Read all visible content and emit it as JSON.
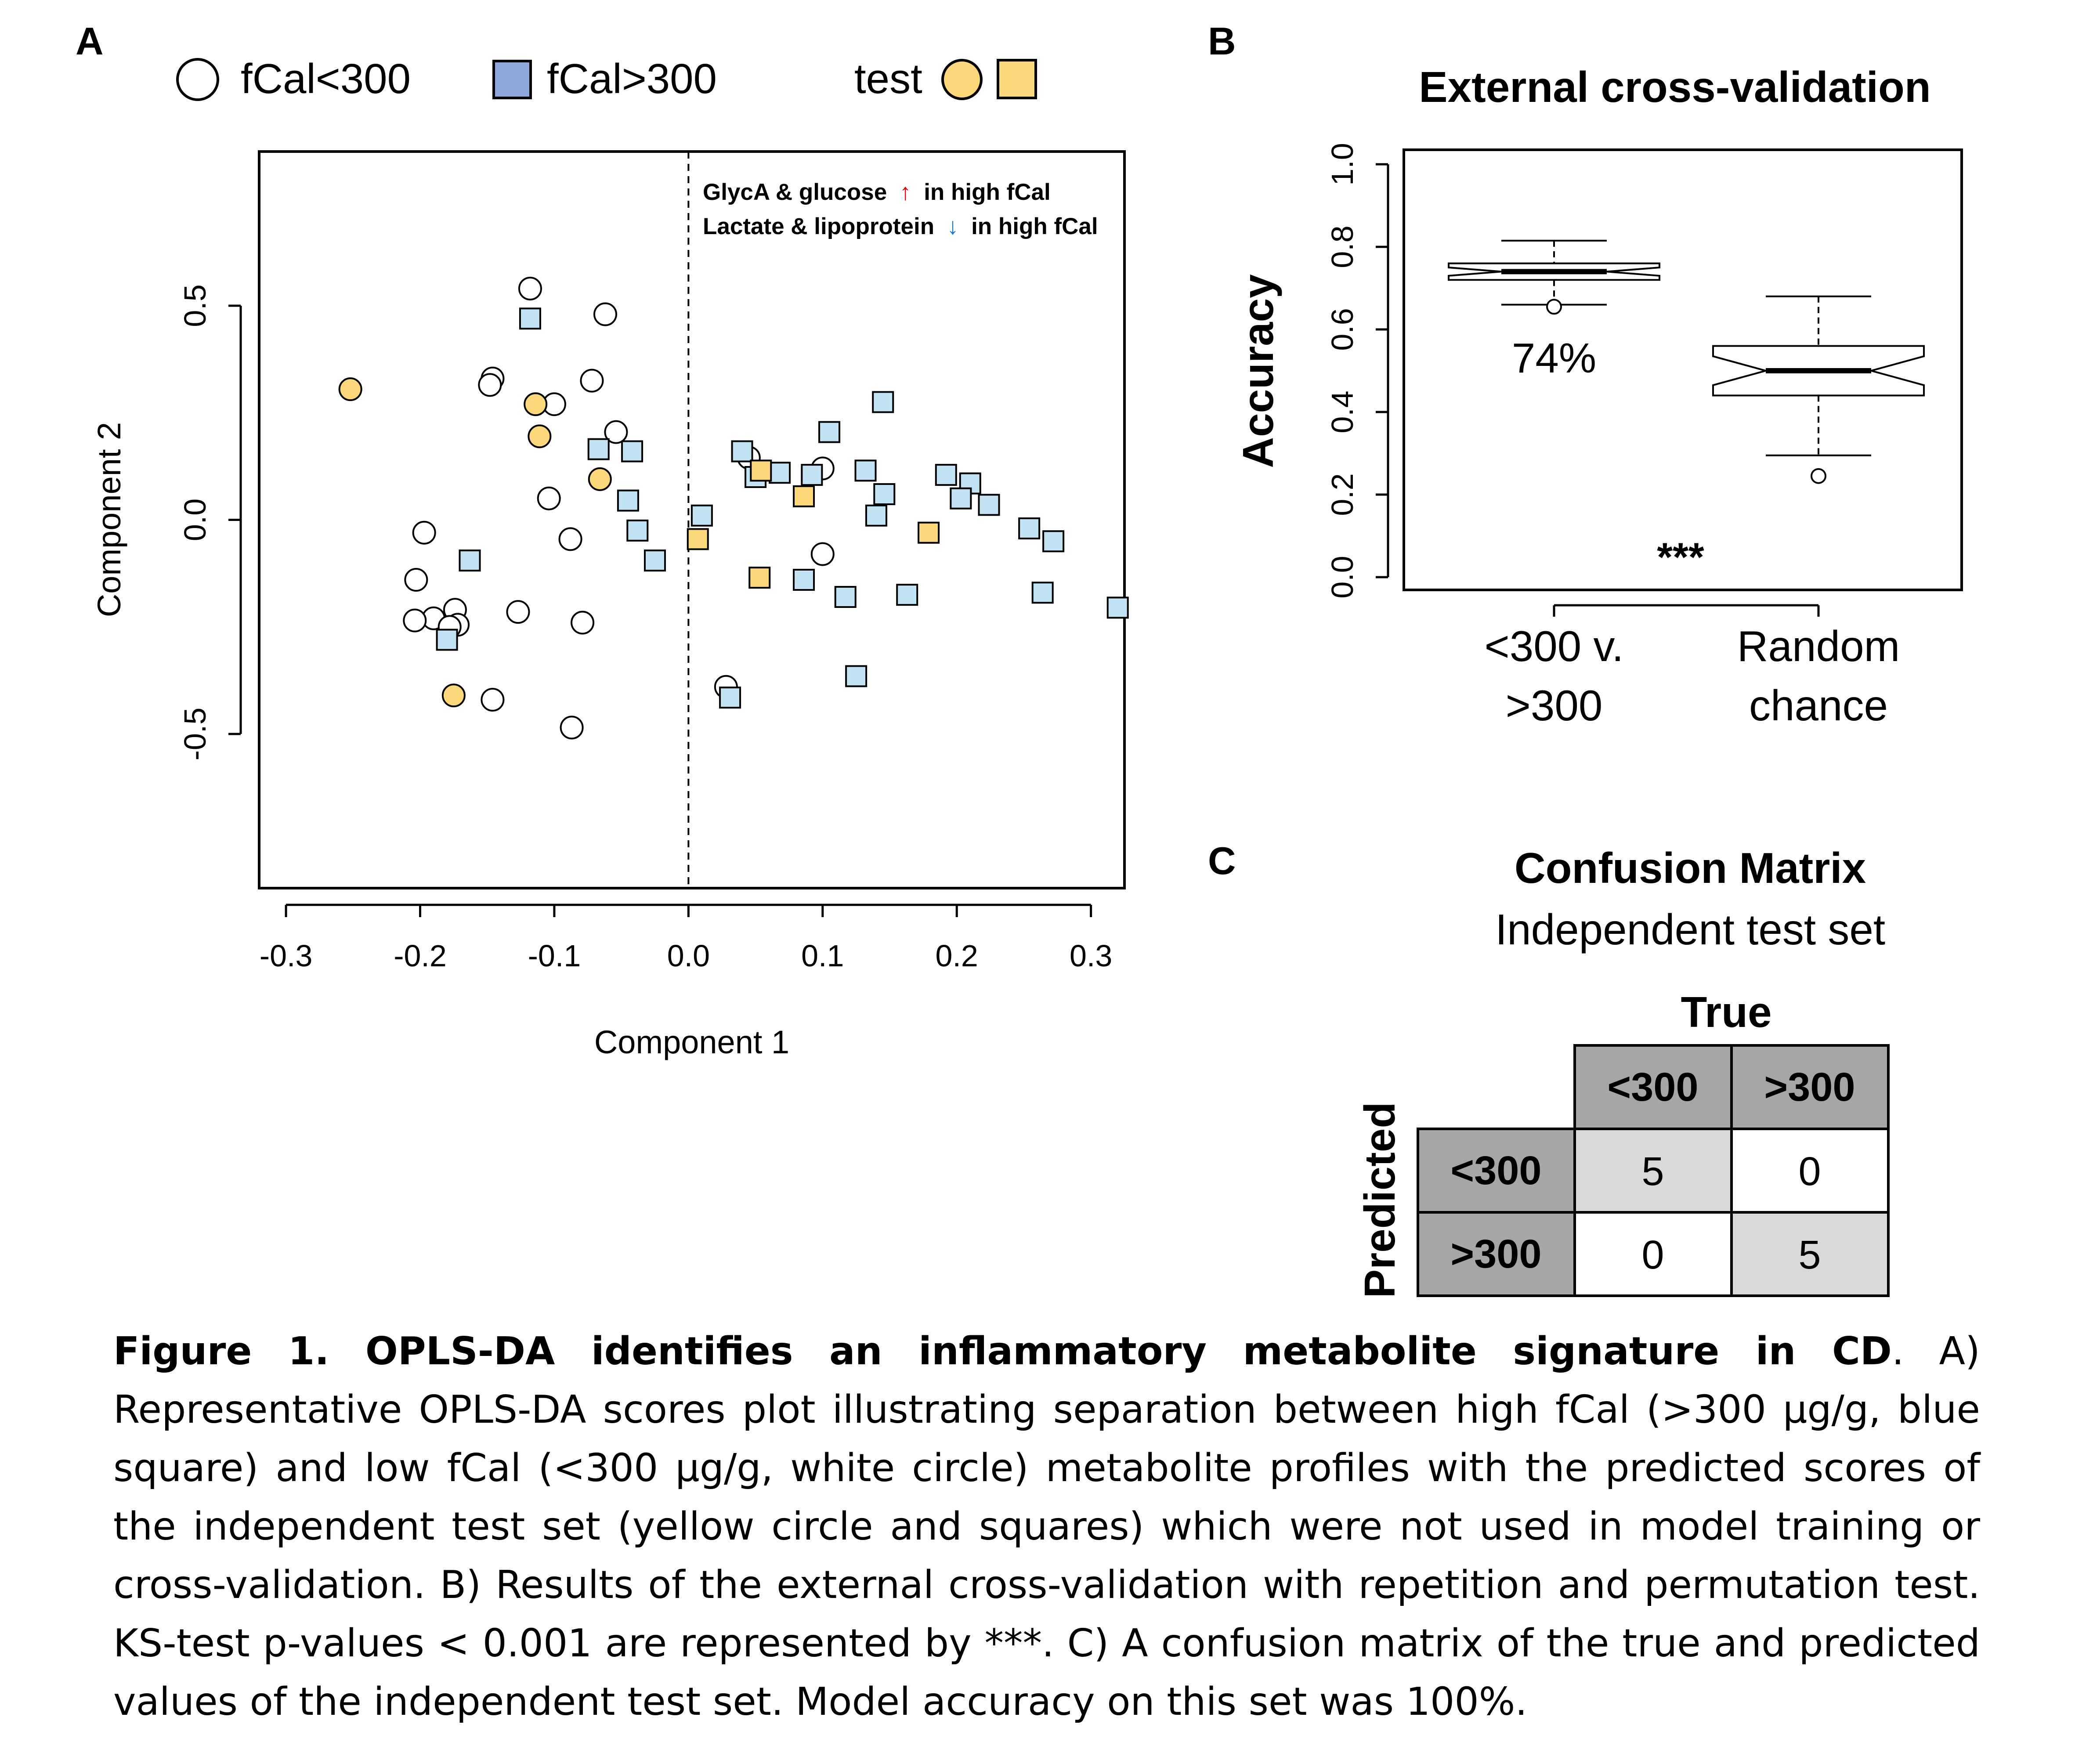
{
  "panel_a": {
    "letter": "A",
    "legend": {
      "low": "fCal<300",
      "high": "fCal>300",
      "test": "test"
    },
    "annotation": {
      "line1_before": "GlycA & glucose",
      "line1_after": "in high fCal",
      "line2_before": "Lactate & lipoprotein",
      "line2_after": "in high fCal",
      "up_arrow": "↑",
      "down_arrow": "↓",
      "up_color": "#e00000",
      "down_color": "#1f77c4"
    }
  },
  "panel_b": {
    "letter": "B",
    "title": "External cross-validation",
    "ylabel": "Accuracy",
    "box1_label": "74%",
    "cat1_line1": "<300 v.",
    "cat1_line2": ">300",
    "cat2_line1": "Random",
    "cat2_line2": "chance",
    "sig": "***"
  },
  "panel_c": {
    "letter": "C",
    "title": "Confusion Matrix",
    "subtitle": "Independent test set",
    "true_label": "True",
    "pred_label": "Predicted",
    "col_lt": "<300",
    "col_gt": ">300",
    "row_lt": "<300",
    "row_gt": ">300",
    "cells": {
      "lt_lt": "5",
      "lt_gt": "0",
      "gt_lt": "0",
      "gt_gt": "5"
    }
  },
  "colors": {
    "blue_fill": "#c2e3f3",
    "legend_blue": "#8fa9dc",
    "yellow_fill": "#fdd87a",
    "header_gray": "#a6a6a6",
    "diag_gray": "#d9d9d9"
  },
  "caption": {
    "bold": "Figure 1. OPLS-DA identifies an inflammatory metabolite signature in CD",
    "text": ". A) Representative OPLS-DA scores plot illustrating separation between high fCal (>300 µg/g, blue square) and low fCal (<300 µg/g, white circle) metabolite profiles with the predicted scores of the independent test set (yellow circle and squares) which were not used in model training or cross-validation. B) Results of the external cross-validation with repetition and permutation test. KS-test p-values < 0.001 are represented by ***. C) A confusion matrix of the true and predicted values of the independent test set. Model accuracy on this set was 100%."
  },
  "chart_data": [
    {
      "type": "scatter",
      "xlabel": "Component 1",
      "ylabel": "Component 2",
      "xlim": [
        -0.32,
        0.325
      ],
      "ylim": [
        -0.86,
        0.86
      ],
      "xticks": [
        -0.3,
        -0.2,
        -0.1,
        0.0,
        0.1,
        0.2,
        0.3
      ],
      "xtick_labels": [
        "-0.3",
        "-0.2",
        "-0.1",
        "0.0",
        "0.1",
        "0.2",
        "0.3"
      ],
      "yticks": [
        -0.5,
        0.0,
        0.5
      ],
      "ytick_labels": [
        "-0.5",
        "0.0",
        "0.5"
      ],
      "vline_x": 0.0,
      "series": [
        {
          "name": "fCal<300",
          "marker": "circle",
          "color": "#ffffff",
          "points": [
            [
              -0.118,
              0.54
            ],
            [
              -0.062,
              0.48
            ],
            [
              -0.146,
              0.33
            ],
            [
              -0.148,
              0.315
            ],
            [
              -0.072,
              0.325
            ],
            [
              -0.1,
              0.27
            ],
            [
              -0.054,
              0.205
            ],
            [
              -0.104,
              0.05
            ],
            [
              -0.088,
              -0.045
            ],
            [
              -0.197,
              -0.03
            ],
            [
              -0.203,
              -0.14
            ],
            [
              -0.19,
              -0.23
            ],
            [
              -0.204,
              -0.235
            ],
            [
              -0.174,
              -0.21
            ],
            [
              -0.172,
              -0.245
            ],
            [
              -0.178,
              -0.25
            ],
            [
              -0.127,
              -0.215
            ],
            [
              -0.079,
              -0.24
            ],
            [
              -0.146,
              -0.42
            ],
            [
              -0.087,
              -0.485
            ],
            [
              0.045,
              0.145
            ],
            [
              0.1,
              0.12
            ],
            [
              0.1,
              -0.08
            ],
            [
              0.028,
              -0.39
            ]
          ]
        },
        {
          "name": "fCal>300",
          "marker": "square",
          "color": "#c2e3f3",
          "points": [
            [
              -0.118,
              0.47
            ],
            [
              -0.067,
              0.165
            ],
            [
              -0.042,
              0.16
            ],
            [
              -0.045,
              0.045
            ],
            [
              -0.038,
              -0.025
            ],
            [
              -0.025,
              -0.095
            ],
            [
              -0.163,
              -0.095
            ],
            [
              -0.18,
              -0.28
            ],
            [
              0.01,
              0.01
            ],
            [
              0.04,
              0.16
            ],
            [
              0.05,
              0.1
            ],
            [
              0.068,
              0.11
            ],
            [
              0.092,
              0.105
            ],
            [
              0.105,
              0.205
            ],
            [
              0.145,
              0.275
            ],
            [
              0.132,
              0.115
            ],
            [
              0.146,
              0.06
            ],
            [
              0.14,
              0.01
            ],
            [
              0.192,
              0.105
            ],
            [
              0.21,
              0.085
            ],
            [
              0.203,
              0.05
            ],
            [
              0.224,
              0.035
            ],
            [
              0.254,
              -0.02
            ],
            [
              0.272,
              -0.05
            ],
            [
              0.264,
              -0.17
            ],
            [
              0.32,
              -0.205
            ],
            [
              0.086,
              -0.14
            ],
            [
              0.117,
              -0.18
            ],
            [
              0.163,
              -0.175
            ],
            [
              0.125,
              -0.365
            ],
            [
              0.031,
              -0.415
            ]
          ]
        },
        {
          "name": "test",
          "marker": "circle",
          "color": "#fdd87a",
          "points": [
            [
              -0.252,
              0.305
            ],
            [
              -0.114,
              0.27
            ],
            [
              -0.111,
              0.195
            ],
            [
              -0.066,
              0.095
            ],
            [
              -0.175,
              -0.41
            ]
          ]
        },
        {
          "name": "test",
          "marker": "square",
          "color": "#fdd87a",
          "points": [
            [
              0.007,
              -0.045
            ],
            [
              0.054,
              0.115
            ],
            [
              0.086,
              0.055
            ],
            [
              0.053,
              -0.135
            ],
            [
              0.179,
              -0.03
            ]
          ]
        }
      ]
    },
    {
      "type": "box",
      "title": "External cross-validation",
      "ylabel": "Accuracy",
      "ylim": [
        0.0,
        1.0
      ],
      "yticks": [
        0.0,
        0.2,
        0.4,
        0.6,
        0.8,
        1.0
      ],
      "ytick_labels": [
        "0.0",
        "0.2",
        "0.4",
        "0.6",
        "0.8",
        "1.0"
      ],
      "categories": [
        "<300 v. >300",
        "Random chance"
      ],
      "boxes": [
        {
          "whisker_low": 0.66,
          "q1": 0.72,
          "median": 0.74,
          "q3": 0.76,
          "whisker_high": 0.815,
          "notch": [
            0.73,
            0.75
          ],
          "outliers": [
            0.655
          ]
        },
        {
          "whisker_low": 0.295,
          "q1": 0.44,
          "median": 0.5,
          "q3": 0.56,
          "whisker_high": 0.68,
          "notch": [
            0.465,
            0.535
          ],
          "outliers": [
            0.245
          ]
        }
      ]
    },
    {
      "type": "table",
      "title": "Confusion Matrix",
      "columns": [
        "<300",
        ">300"
      ],
      "rows": [
        "<300",
        ">300"
      ],
      "values": [
        [
          5,
          0
        ],
        [
          0,
          5
        ]
      ]
    }
  ]
}
